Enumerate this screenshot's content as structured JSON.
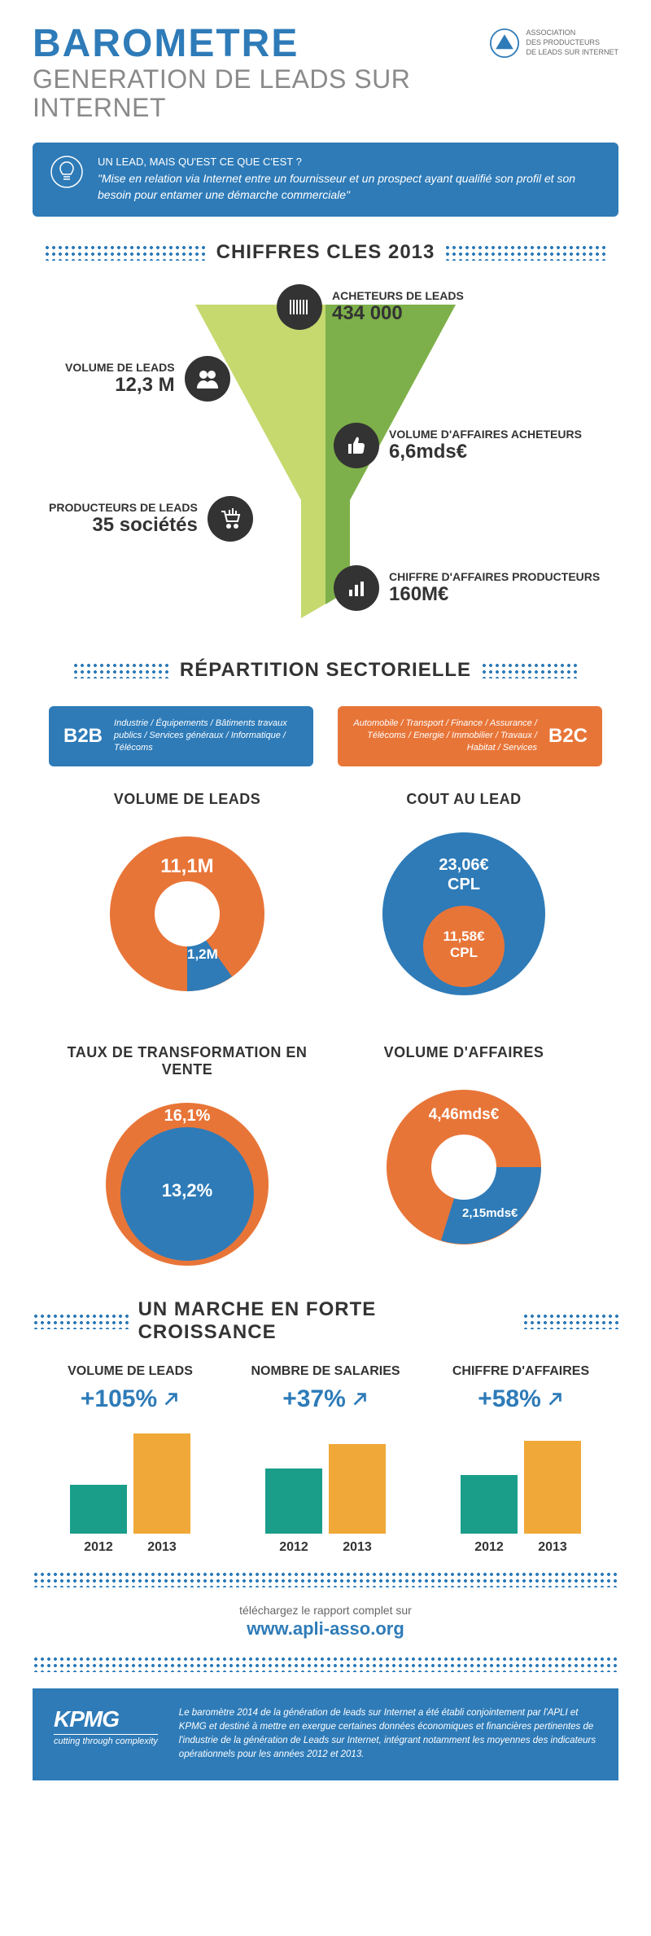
{
  "colors": {
    "blue": "#2e7bb8",
    "orange": "#e87538",
    "teal": "#1a9e8a",
    "amber": "#f0a838",
    "dark": "#333333",
    "gray": "#8a8a8a",
    "funnel_light": "#c5d96e",
    "funnel_dark": "#7db04a"
  },
  "header": {
    "title_main": "BAROMETRE",
    "title_sub": "GENERATION DE LEADS SUR INTERNET",
    "logo_line1": "ASSOCIATION",
    "logo_line2": "DES PRODUCTEURS",
    "logo_line3": "DE LEADS SUR INTERNET"
  },
  "quote": {
    "title": "UN LEAD, MAIS QU'EST CE QUE C'EST ?",
    "text": "\"Mise en relation via Internet entre un fournisseur et un prospect ayant qualifié son profil et son besoin pour entamer une démarche commerciale\""
  },
  "section_chiffres": {
    "title": "CHIFFRES CLES 2013",
    "stats": {
      "acheteurs": {
        "label": "ACHETEURS DE LEADS",
        "value": "434 000"
      },
      "volume_leads": {
        "label": "VOLUME DE LEADS",
        "value": "12,3 M"
      },
      "volume_affaires": {
        "label": "VOLUME D'AFFAIRES ACHETEURS",
        "value": "6,6mds€"
      },
      "producteurs": {
        "label": "PRODUCTEURS DE LEADS",
        "value": "35 sociétés"
      },
      "chiffre_affaires": {
        "label": "CHIFFRE D'AFFAIRES PRODUCTEURS",
        "value": "160M€"
      }
    }
  },
  "section_repartition": {
    "title": "RÉPARTITION SECTORIELLE",
    "b2b": {
      "label": "B2B",
      "desc": "Industrie / Équipements / Bâtiments travaux publics / Services généraux / Informatique / Télécoms"
    },
    "b2c": {
      "label": "B2C",
      "desc": "Automobile / Transport / Finance / Assurance / Télécoms / Energie / Immobilier / Travaux / Habitat / Services"
    },
    "charts": {
      "volume": {
        "title": "VOLUME DE LEADS",
        "type": "donut",
        "b2c_value": "11,1M",
        "b2c_pct": 90,
        "b2c_color": "#e87538",
        "b2b_value": "1,2M",
        "b2b_pct": 10,
        "b2b_color": "#2e7bb8",
        "inner_hole_pct": 40
      },
      "cout": {
        "title": "COUT AU LEAD",
        "type": "nested-circle",
        "outer_value": "23,06€",
        "outer_label": "CPL",
        "outer_color": "#2e7bb8",
        "inner_value": "11,58€",
        "inner_label": "CPL",
        "inner_color": "#e87538",
        "inner_radius_pct": 50
      },
      "taux": {
        "title": "TAUX DE TRANSFORMATION EN VENTE",
        "type": "nested-circle",
        "outer_value": "16,1%",
        "outer_color": "#e87538",
        "inner_value": "13,2%",
        "inner_color": "#2e7bb8",
        "inner_radius_pct": 82
      },
      "affaires": {
        "title": "VOLUME D'AFFAIRES",
        "type": "donut",
        "b2c_value": "4,46mds€",
        "b2c_pct": 67,
        "b2c_color": "#e87538",
        "b2b_value": "2,15mds€",
        "b2b_pct": 33,
        "b2b_color": "#2e7bb8",
        "inner_hole_pct": 40
      }
    }
  },
  "section_croissance": {
    "title": "UN MARCHE EN FORTE CROISSANCE",
    "items": [
      {
        "title": "VOLUME DE LEADS",
        "value": "+105%",
        "bar_2012_h": 60,
        "bar_2013_h": 123
      },
      {
        "title": "NOMBRE DE SALARIES",
        "value": "+37%",
        "bar_2012_h": 80,
        "bar_2013_h": 110
      },
      {
        "title": "CHIFFRE D'AFFAIRES",
        "value": "+58%",
        "bar_2012_h": 72,
        "bar_2013_h": 114
      }
    ],
    "year_2012": "2012",
    "year_2013": "2013"
  },
  "download": {
    "text": "téléchargez le rapport complet sur",
    "link": "www.apli-asso.org"
  },
  "footer": {
    "kpmg": "KPMG",
    "kpmg_tag": "cutting through complexity",
    "text": "Le baromètre 2014 de la génération de leads sur Internet a été établi conjointement par l'APLI et KPMG et destiné à mettre en exergue certaines données économiques et financières pertinentes de l'industrie de la génération de Leads sur Internet, intégrant notamment les moyennes des indicateurs opérationnels pour les années 2012 et 2013."
  }
}
